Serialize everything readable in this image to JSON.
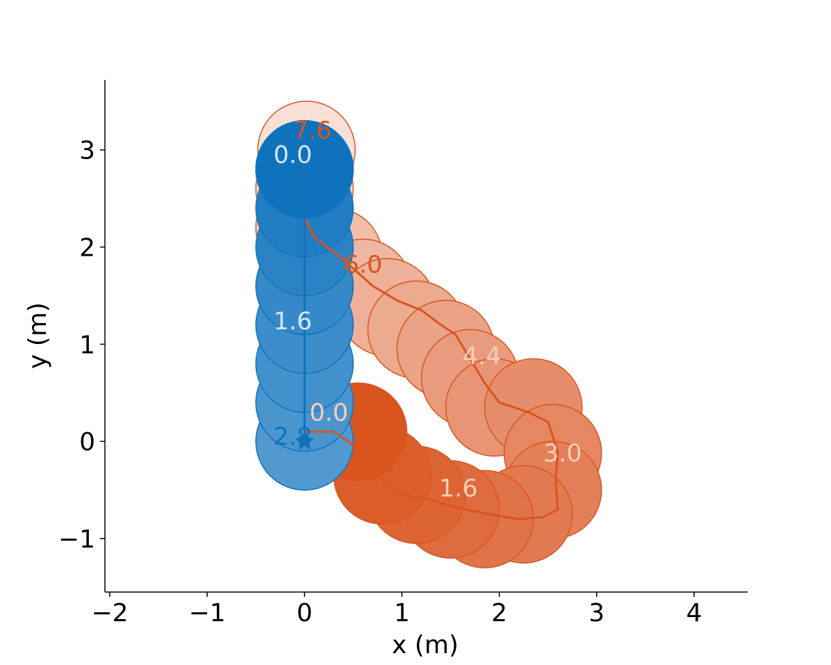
{
  "chart_data": {
    "type": "scatter",
    "title": "",
    "xlabel": "x (m)",
    "ylabel": "y (m)",
    "xlim": [
      -2.05,
      4.55
    ],
    "ylim": [
      -1.55,
      3.72
    ],
    "grid": false,
    "x_ticks": [
      {
        "value": -2,
        "label": "−2"
      },
      {
        "value": -1,
        "label": "−1"
      },
      {
        "value": 0,
        "label": "0"
      },
      {
        "value": 1,
        "label": "1"
      },
      {
        "value": 2,
        "label": "2"
      },
      {
        "value": 3,
        "label": "3"
      },
      {
        "value": 4,
        "label": "4"
      }
    ],
    "y_ticks": [
      {
        "value": -1,
        "label": "−1"
      },
      {
        "value": 0,
        "label": "0"
      },
      {
        "value": 1,
        "label": "1"
      },
      {
        "value": 2,
        "label": "2"
      },
      {
        "value": 3,
        "label": "3"
      }
    ],
    "agent_radius": 0.5,
    "series": [
      {
        "color": "#d9541e",
        "edge_color": "#d9541e",
        "path": [
          [
            0.0,
            0.1
          ],
          [
            0.3,
            0.1
          ],
          [
            0.45,
            0.0
          ],
          [
            0.55,
            -0.1
          ],
          [
            0.7,
            -0.3
          ],
          [
            0.85,
            -0.45
          ],
          [
            1.0,
            -0.55
          ],
          [
            1.3,
            -0.6
          ],
          [
            1.55,
            -0.68
          ],
          [
            1.9,
            -0.75
          ],
          [
            2.2,
            -0.8
          ],
          [
            2.45,
            -0.78
          ],
          [
            2.6,
            -0.7
          ],
          [
            2.58,
            -0.4
          ],
          [
            2.6,
            -0.1
          ],
          [
            2.5,
            0.2
          ],
          [
            2.3,
            0.3
          ],
          [
            2.0,
            0.4
          ],
          [
            1.85,
            0.6
          ],
          [
            1.7,
            0.85
          ],
          [
            1.55,
            1.1
          ],
          [
            1.4,
            1.2
          ],
          [
            1.2,
            1.35
          ],
          [
            0.95,
            1.45
          ],
          [
            0.7,
            1.6
          ],
          [
            0.5,
            1.78
          ],
          [
            0.3,
            1.95
          ],
          [
            0.1,
            2.1
          ],
          [
            0.0,
            2.3
          ],
          [
            0.0,
            2.5
          ],
          [
            0.0,
            2.8
          ],
          [
            0.0,
            3.0
          ]
        ],
        "discs": [
          {
            "x": 0.55,
            "y": 0.1,
            "alpha": 1.0
          },
          {
            "x": 0.8,
            "y": -0.35,
            "alpha": 0.95
          },
          {
            "x": 1.15,
            "y": -0.55,
            "alpha": 0.9
          },
          {
            "x": 1.5,
            "y": -0.7,
            "alpha": 0.86
          },
          {
            "x": 1.85,
            "y": -0.8,
            "alpha": 0.82
          },
          {
            "x": 2.25,
            "y": -0.75,
            "alpha": 0.78
          },
          {
            "x": 2.55,
            "y": -0.5,
            "alpha": 0.74
          },
          {
            "x": 2.55,
            "y": -0.12,
            "alpha": 0.7
          },
          {
            "x": 2.35,
            "y": 0.35,
            "alpha": 0.66
          },
          {
            "x": 1.95,
            "y": 0.35,
            "alpha": 0.62
          },
          {
            "x": 1.7,
            "y": 0.65,
            "alpha": 0.58
          },
          {
            "x": 1.45,
            "y": 0.95,
            "alpha": 0.54
          },
          {
            "x": 1.15,
            "y": 1.15,
            "alpha": 0.5
          },
          {
            "x": 0.85,
            "y": 1.38,
            "alpha": 0.46
          },
          {
            "x": 0.6,
            "y": 1.58,
            "alpha": 0.42
          },
          {
            "x": 0.3,
            "y": 1.9,
            "alpha": 0.38
          },
          {
            "x": 0.0,
            "y": 2.2,
            "alpha": 0.3
          },
          {
            "x": 0.0,
            "y": 2.6,
            "alpha": 0.25
          },
          {
            "x": 0.02,
            "y": 3.0,
            "alpha": 0.18
          }
        ],
        "time_labels": [
          {
            "x": 0.25,
            "y": 0.3,
            "text": "0.0",
            "color": "#f5cdb9"
          },
          {
            "x": 1.58,
            "y": -0.48,
            "text": "1.6",
            "color": "#f5cdb9"
          },
          {
            "x": 2.65,
            "y": -0.12,
            "text": "3.0",
            "color": "#f5cdb9"
          },
          {
            "x": 1.82,
            "y": 0.88,
            "text": "4.4",
            "color": "#f5cdb9"
          },
          {
            "x": 0.6,
            "y": 1.82,
            "text": "6.0",
            "color": "#d9541e"
          },
          {
            "x": 0.08,
            "y": 3.2,
            "text": "7.6",
            "color": "#d9541e"
          }
        ]
      },
      {
        "color": "#0e72bd",
        "edge_color": "#0e72bd",
        "path": [
          [
            0.0,
            0.0
          ],
          [
            0.0,
            0.4
          ],
          [
            0.0,
            0.8
          ],
          [
            0.0,
            1.2
          ],
          [
            0.0,
            1.6
          ],
          [
            0.0,
            2.0
          ],
          [
            0.0,
            2.4
          ],
          [
            0.0,
            2.8
          ],
          [
            0.0,
            3.0
          ]
        ],
        "goal": {
          "x": 0.0,
          "y": 0.0
        },
        "discs": [
          {
            "x": 0.0,
            "y": 0.0,
            "alpha": 0.72
          },
          {
            "x": 0.0,
            "y": 0.4,
            "alpha": 0.75
          },
          {
            "x": 0.0,
            "y": 0.8,
            "alpha": 0.78
          },
          {
            "x": 0.0,
            "y": 1.2,
            "alpha": 0.81
          },
          {
            "x": 0.0,
            "y": 1.6,
            "alpha": 0.84
          },
          {
            "x": 0.0,
            "y": 2.0,
            "alpha": 0.88
          },
          {
            "x": 0.0,
            "y": 2.4,
            "alpha": 0.92
          },
          {
            "x": 0.0,
            "y": 2.8,
            "alpha": 0.96
          },
          {
            "x": 0.0,
            "y": 2.8,
            "alpha": 1.0
          }
        ],
        "time_labels": [
          {
            "x": -0.12,
            "y": 0.05,
            "text": "2.8",
            "color": "#0e72bd"
          },
          {
            "x": -0.12,
            "y": 1.24,
            "text": "1.6",
            "color": "#d6e6f5"
          },
          {
            "x": -0.12,
            "y": 2.95,
            "text": "0.0",
            "color": "#d6e6f5"
          }
        ]
      }
    ]
  }
}
